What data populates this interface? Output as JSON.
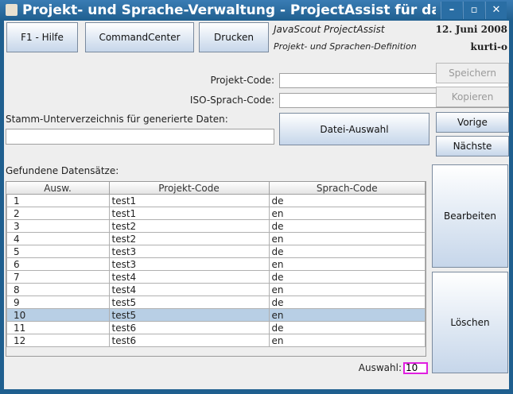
{
  "window": {
    "title": "Projekt- und Sprache-Verwaltung - ProjectAssist für das Ja",
    "minimize": "–",
    "maximize": "▫",
    "close": "✕",
    "icon": "java-cup-icon"
  },
  "toolbar": {
    "help": "F1 - Hilfe",
    "commandcenter": "CommandCenter",
    "print": "Drucken"
  },
  "header": {
    "app": "JavaScout ProjectAssist",
    "subtitle": "Projekt- und Sprachen-Definition",
    "date": "12. Juni 2008",
    "user": "kurti-o"
  },
  "form": {
    "project_code_label": "Projekt-Code:",
    "project_code_value": "",
    "iso_label": "ISO-Sprach-Code:",
    "iso_value": "",
    "dir_label": "Stamm-Unterverzeichnis für generierte Daten:",
    "dir_value": "",
    "file_select": "Datei-Auswahl"
  },
  "actions": {
    "save": "Speichern",
    "copy": "Kopieren",
    "prev": "Vorige",
    "next": "Nächste",
    "edit": "Bearbeiten",
    "delete": "Löschen"
  },
  "results": {
    "label": "Gefundene Datensätze:",
    "columns": [
      "Ausw.",
      "Projekt-Code",
      "Sprach-Code"
    ],
    "rows": [
      [
        "1",
        "test1",
        "de"
      ],
      [
        "2",
        "test1",
        "en"
      ],
      [
        "3",
        "test2",
        "de"
      ],
      [
        "4",
        "test2",
        "en"
      ],
      [
        "5",
        "test3",
        "de"
      ],
      [
        "6",
        "test3",
        "en"
      ],
      [
        "7",
        "test4",
        "de"
      ],
      [
        "8",
        "test4",
        "en"
      ],
      [
        "9",
        "test5",
        "de"
      ],
      [
        "10",
        "test5",
        "en"
      ],
      [
        "11",
        "test6",
        "de"
      ],
      [
        "12",
        "test6",
        "en"
      ]
    ],
    "selected_row": "10"
  },
  "selection": {
    "label": "Auswahl:",
    "value": "10"
  }
}
